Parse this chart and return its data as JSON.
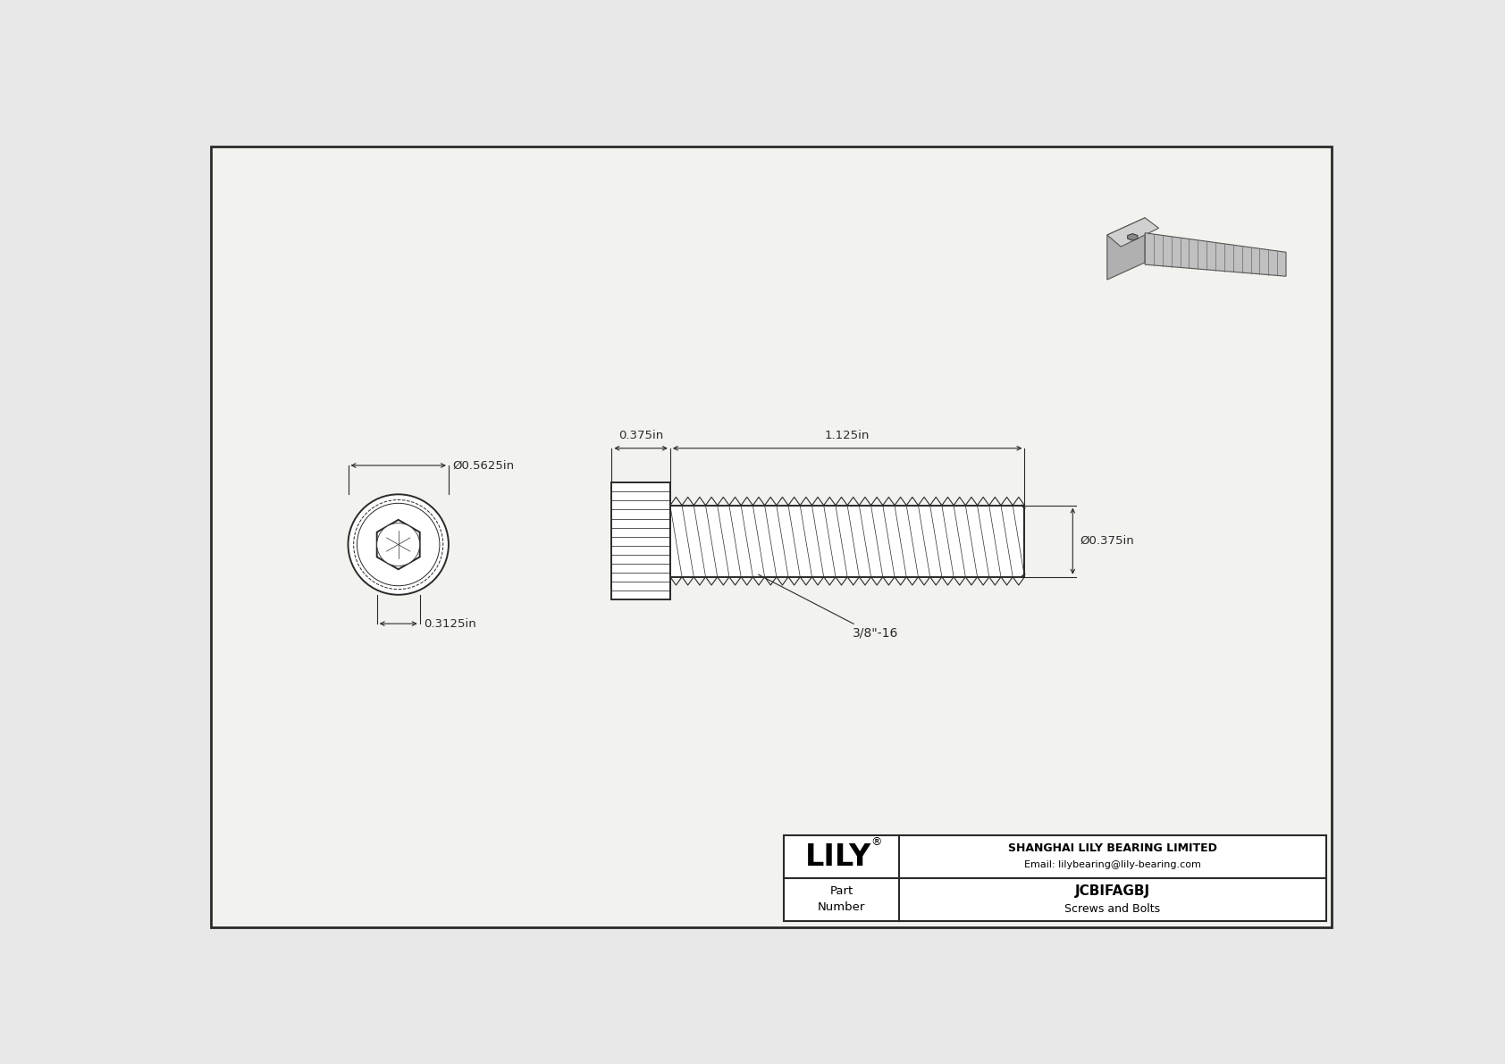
{
  "bg_color": "#e8e8e8",
  "line_color": "#2a2a2a",
  "dim_color": "#2a2a2a",
  "title": "JCBIFAGBJ",
  "subtitle": "Screws and Bolts",
  "company": "SHANGHAI LILY BEARING LIMITED",
  "email": "Email: lilybearing@lily-bearing.com",
  "part_label": "Part\nNumber",
  "logo_text": "LILY",
  "dim_head_diameter": "Ø0.5625in",
  "dim_head_length": "0.375in",
  "dim_shank_length": "1.125in",
  "dim_shank_diameter": "Ø0.375in",
  "dim_hex_size": "0.3125in",
  "thread_label": "3/8\"-16",
  "paper_color": "#f2f2ee"
}
